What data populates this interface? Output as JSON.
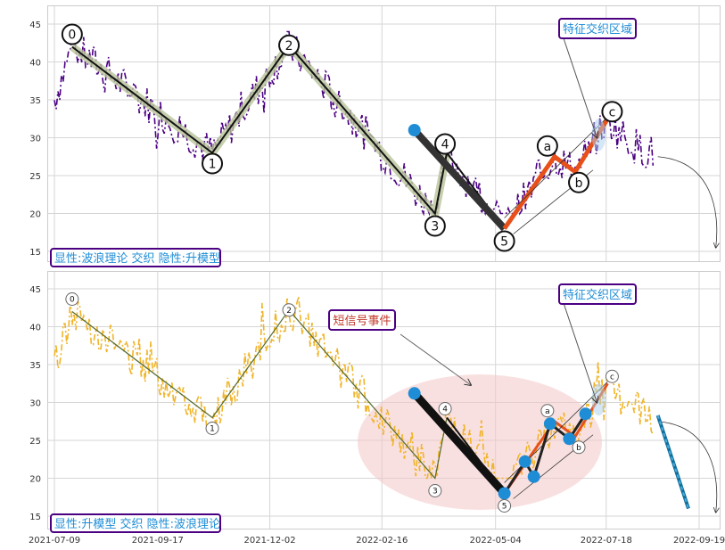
{
  "chart_data": [
    {
      "type": "line",
      "caption": "显性:波浪理论 交织 隐性:升模型",
      "callout": "特征交织区域",
      "y_ticks": [
        15,
        20,
        25,
        30,
        35,
        40,
        45
      ],
      "ylim": [
        13.5,
        47.5
      ],
      "wave_labels": [
        "0",
        "1",
        "2",
        "3",
        "4",
        "5",
        "a",
        "b",
        "c"
      ],
      "wave_points": [
        {
          "label": "0",
          "x": "2021-07-21",
          "y": 42.0
        },
        {
          "label": "1",
          "x": "2021-10-24",
          "y": 28.0
        },
        {
          "label": "2",
          "x": "2021-12-15",
          "y": 42.2
        },
        {
          "label": "3",
          "x": "2022-03-24",
          "y": 20.0
        },
        {
          "label": "4",
          "x": "2022-04-01",
          "y": 28.0
        },
        {
          "label": "5",
          "x": "2022-05-10",
          "y": 18.0
        },
        {
          "label": "a",
          "x": "2022-06-13",
          "y": 27.5
        },
        {
          "label": "b",
          "x": "2022-06-27",
          "y": 25.5
        },
        {
          "label": "c",
          "x": "2022-07-19",
          "y": 32.5
        }
      ]
    },
    {
      "type": "line",
      "caption": "显性:升模型 交织 隐性:波浪理论",
      "callout": "特征交织区域",
      "event_label": "短信号事件",
      "y_ticks": [
        15,
        20,
        25,
        30,
        35,
        40,
        45
      ],
      "ylim": [
        13.5,
        47.5
      ],
      "x_ticks": [
        "2021-07-09",
        "2021-09-17",
        "2021-12-02",
        "2022-02-16",
        "2022-05-04",
        "2022-07-18",
        "2022-09-19"
      ],
      "wave_labels": [
        "0",
        "1",
        "2",
        "3",
        "4",
        "5",
        "a",
        "b",
        "c"
      ],
      "wave_points": [
        {
          "label": "0",
          "x": "2021-07-21",
          "y": 42.0
        },
        {
          "label": "1",
          "x": "2021-10-24",
          "y": 28.0
        },
        {
          "label": "2",
          "x": "2021-12-15",
          "y": 42.2
        },
        {
          "label": "3",
          "x": "2022-03-24",
          "y": 20.0
        },
        {
          "label": "4",
          "x": "2022-04-01",
          "y": 28.0
        },
        {
          "label": "5",
          "x": "2022-05-10",
          "y": 18.0
        },
        {
          "label": "a",
          "x": "2022-06-13",
          "y": 27.5
        },
        {
          "label": "b",
          "x": "2022-06-27",
          "y": 25.5
        },
        {
          "label": "c",
          "x": "2022-07-19",
          "y": 32.5
        }
      ]
    }
  ],
  "colors": {
    "price_top": "#4b0082",
    "price_bottom": "#f0b429",
    "wave_line": "#111111",
    "wave_highlight": "#b8c49a",
    "impulse_down": "#333333",
    "correction": "#e8501a",
    "marker_blue": "#1f8dd6",
    "caption_text": "#1f8dd6",
    "caption_border": "#4b0082",
    "event_text": "#c0392b",
    "ellipse": "#f4c6c6"
  }
}
